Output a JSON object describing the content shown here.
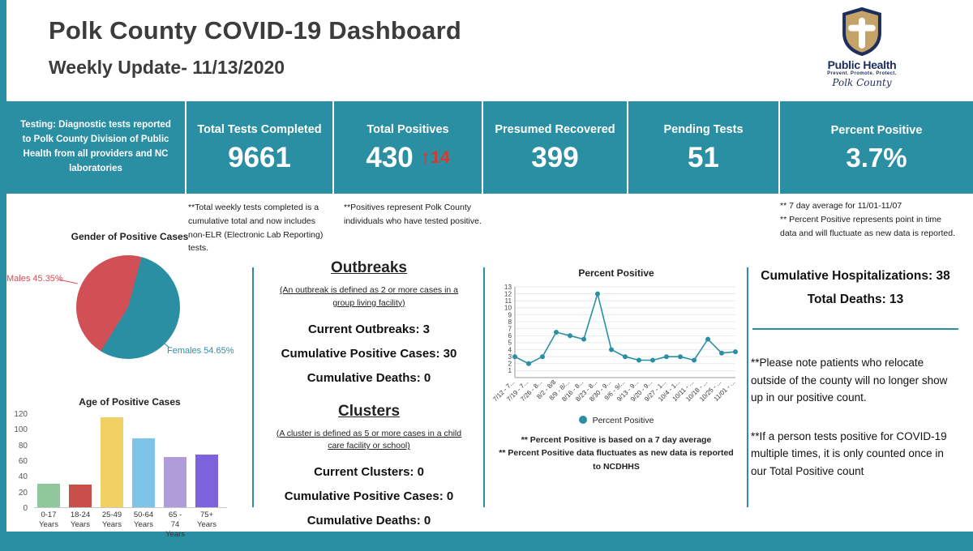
{
  "accent": {
    "teal": "#2b8fa4",
    "red": "#d05056",
    "red-bright": "#d63a2d",
    "navy": "#1d2d5c",
    "gold": "#c3a367"
  },
  "header": {
    "title": "Polk County COVID-19 Dashboard",
    "subtitle": "Weekly Update- 11/13/2020",
    "logo": {
      "org": "Public Health",
      "tagline": "Prevent. Promote. Protect.",
      "county": "Polk County"
    }
  },
  "stat_band": {
    "intro": "Testing: Diagnostic tests reported to Polk County Division of Public Health from all providers and NC laboratories",
    "stats": [
      {
        "label": "Total Tests Completed",
        "value": "9661"
      },
      {
        "label": "Total Positives",
        "value": "430",
        "delta": "14"
      },
      {
        "label": "Presumed Recovered",
        "value": "399"
      },
      {
        "label": "Pending Tests",
        "value": "51"
      },
      {
        "label": "Percent Positive",
        "value": "3.7%"
      }
    ]
  },
  "footnotes": {
    "tests": "**Total weekly tests completed is a cumulative total and now includes non-ELR (Electronic Lab Reporting) tests.",
    "positives": "**Positives represent Polk County individuals who have tested positive.",
    "percent_line1": "** 7 day average for 11/01-11/07",
    "percent_line2": "** Percent Positive represents point in time data and will fluctuate as new data is reported."
  },
  "outbreaks": {
    "title": "Outbreaks",
    "definition": "(An outbreak is defined as 2 or more cases in a group living facility)",
    "lines": [
      "Current Outbreaks: 3",
      "Cumulative Positive Cases: 30",
      "Cumulative Deaths: 0"
    ]
  },
  "clusters": {
    "title": "Clusters",
    "definition": "(A cluster is defined as 5 or more cases in a child care facility or school)",
    "lines": [
      "Current Clusters: 0",
      "Cumulative Positive Cases: 0",
      "Cumulative Deaths: 0"
    ]
  },
  "percent_positive_chart": {
    "legend": "Percent Positive",
    "footnote1": "** Percent Positive is based on a 7 day average",
    "footnote2": "** Percent Positive data fluctuates as new data is reported to NCDHHS"
  },
  "right_panel": {
    "hospitalizations": "Cumulative Hospitalizations: 38",
    "deaths": "Total Deaths: 13",
    "note1": "**Please note patients who relocate outside of the county will no longer show up in our positive count.",
    "note2": "**If a person tests positive for COVID-19 multiple times, it is only counted once in our Total Positive count"
  },
  "chart_data": [
    {
      "type": "pie",
      "title": "Gender of Positive Cases",
      "slices": [
        {
          "label": "Females 54.65%",
          "value": 54.65,
          "color": "#2b8fa4"
        },
        {
          "label": "Males 45.35%",
          "value": 45.35,
          "color": "#d05056"
        }
      ],
      "start_angle_deg": 15
    },
    {
      "type": "bar",
      "title": "Age of Positive Cases",
      "categories": [
        "0-17 Years",
        "18-24 Years",
        "25-49 Years",
        "50-64 Years",
        "65 - 74 Years",
        "75+ Years"
      ],
      "values": [
        30,
        29,
        115,
        88,
        64,
        67
      ],
      "colors": [
        "#90c79b",
        "#c94f4b",
        "#f1d064",
        "#7dc4e8",
        "#b09cd9",
        "#7e62db"
      ],
      "ylim": [
        0,
        120
      ],
      "yticks": [
        0,
        20,
        40,
        60,
        80,
        100,
        120
      ]
    },
    {
      "type": "line",
      "title": "Percent Positive",
      "x": [
        "7/12 - 7...",
        "7/19 - 7...",
        "7/26 - 8...",
        "8/2 - 8/8",
        "8/9 - 8/...",
        "8/16 - 8...",
        "8/23 - 8...",
        "8/30 - 9...",
        "9/6 - 9/...",
        "9/13 - 9...",
        "9/20 - 9...",
        "9/27 - 1...",
        "10/4 - 1...",
        "10/11 - ...",
        "10/18 - ...",
        "10/25 - ...",
        "11/01 - ..."
      ],
      "values": [
        3,
        2,
        3,
        6.5,
        6,
        5.5,
        12,
        4,
        3,
        2.5,
        2.5,
        3,
        3,
        2.5,
        5.5,
        3.5,
        3.7
      ],
      "ylim": [
        0,
        13
      ],
      "yticks": [
        1,
        2,
        3,
        4,
        5,
        6,
        7,
        8,
        9,
        10,
        11,
        12,
        13
      ],
      "line_color": "#2b8fa4",
      "legend": "Percent Positive",
      "legend_position": "bottom",
      "grid": true
    }
  ]
}
